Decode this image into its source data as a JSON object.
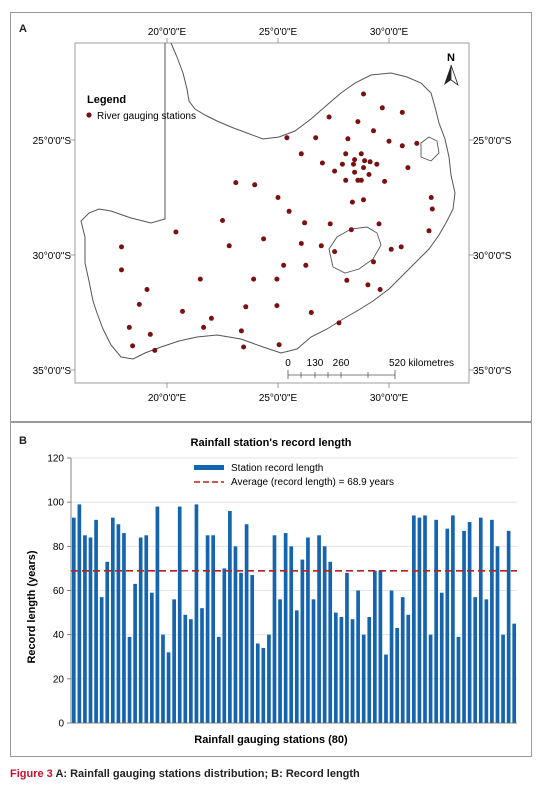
{
  "panel_a": {
    "letter": "A",
    "lon_labels": [
      "20°0'0\"E",
      "25°0'0\"E",
      "30°0'0\"E"
    ],
    "lat_labels": [
      "25°0'0\"S",
      "30°0'0\"S",
      "35°0'0\"S"
    ],
    "legend_title": "Legend",
    "legend_item": "River gauging stations",
    "north": "N",
    "scale_ticks": [
      "0",
      "130",
      "260",
      "520 kilometres"
    ],
    "station_color": "#7a1010",
    "stations": [
      [
        28.85,
        -23.0
      ],
      [
        29.7,
        -23.6
      ],
      [
        30.6,
        -23.8
      ],
      [
        27.3,
        -24.0
      ],
      [
        28.6,
        -24.2
      ],
      [
        29.3,
        -24.6
      ],
      [
        25.4,
        -24.9
      ],
      [
        26.7,
        -24.9
      ],
      [
        28.15,
        -24.95
      ],
      [
        30.0,
        -25.05
      ],
      [
        31.25,
        -25.15
      ],
      [
        30.6,
        -25.25
      ],
      [
        26.05,
        -25.6
      ],
      [
        28.05,
        -25.6
      ],
      [
        28.75,
        -25.6
      ],
      [
        28.45,
        -25.85
      ],
      [
        29.15,
        -25.95
      ],
      [
        28.9,
        -25.9
      ],
      [
        27.0,
        -26.0
      ],
      [
        27.9,
        -26.05
      ],
      [
        28.4,
        -26.05
      ],
      [
        29.45,
        -26.05
      ],
      [
        28.85,
        -26.2
      ],
      [
        27.55,
        -26.35
      ],
      [
        28.45,
        -26.4
      ],
      [
        30.85,
        -26.2
      ],
      [
        29.1,
        -26.5
      ],
      [
        28.75,
        -26.75
      ],
      [
        28.6,
        -26.75
      ],
      [
        28.05,
        -26.75
      ],
      [
        29.8,
        -26.8
      ],
      [
        23.1,
        -26.85
      ],
      [
        23.95,
        -26.95
      ],
      [
        25.0,
        -27.5
      ],
      [
        31.9,
        -27.5
      ],
      [
        31.95,
        -28.0
      ],
      [
        28.35,
        -27.7
      ],
      [
        28.85,
        -27.6
      ],
      [
        25.5,
        -28.1
      ],
      [
        22.5,
        -28.5
      ],
      [
        26.2,
        -28.6
      ],
      [
        27.35,
        -28.65
      ],
      [
        29.55,
        -28.65
      ],
      [
        28.3,
        -28.9
      ],
      [
        20.4,
        -29.0
      ],
      [
        24.35,
        -29.3
      ],
      [
        26.05,
        -29.5
      ],
      [
        26.95,
        -29.6
      ],
      [
        31.8,
        -28.95
      ],
      [
        27.55,
        -29.85
      ],
      [
        30.1,
        -29.75
      ],
      [
        30.55,
        -29.65
      ],
      [
        17.95,
        -29.65
      ],
      [
        22.8,
        -29.6
      ],
      [
        29.3,
        -30.3
      ],
      [
        25.25,
        -30.45
      ],
      [
        26.25,
        -30.45
      ],
      [
        17.95,
        -30.65
      ],
      [
        21.5,
        -31.05
      ],
      [
        23.9,
        -31.05
      ],
      [
        24.95,
        -31.05
      ],
      [
        28.1,
        -31.1
      ],
      [
        29.05,
        -31.3
      ],
      [
        19.1,
        -31.5
      ],
      [
        29.6,
        -31.5
      ],
      [
        18.75,
        -32.15
      ],
      [
        23.55,
        -32.25
      ],
      [
        24.95,
        -32.2
      ],
      [
        20.7,
        -32.45
      ],
      [
        22.0,
        -32.75
      ],
      [
        26.5,
        -32.5
      ],
      [
        18.3,
        -33.15
      ],
      [
        27.75,
        -32.95
      ],
      [
        21.65,
        -33.15
      ],
      [
        23.35,
        -33.3
      ],
      [
        19.25,
        -33.45
      ],
      [
        25.05,
        -33.9
      ],
      [
        18.45,
        -33.95
      ],
      [
        23.45,
        -34.0
      ],
      [
        19.45,
        -34.15
      ]
    ]
  },
  "chart_data": {
    "type": "bar",
    "panel_letter": "B",
    "title": "Rainfall station's record length",
    "xlabel": "Rainfall gauging stations (80)",
    "ylabel": "Record length (years)",
    "ylim": [
      0,
      120
    ],
    "yticks": [
      0,
      20,
      40,
      60,
      80,
      100,
      120
    ],
    "grid": true,
    "legend_position": "top-center",
    "series": [
      {
        "name": "Station record length",
        "color": "#1464ae",
        "values": [
          93,
          99,
          85,
          84,
          92,
          57,
          73,
          93,
          90,
          86,
          39,
          63,
          84,
          85,
          59,
          98,
          40,
          32,
          56,
          98,
          49,
          47,
          99,
          52,
          85,
          85,
          39,
          70,
          96,
          80,
          68,
          90,
          67,
          36,
          34,
          40,
          85,
          56,
          86,
          80,
          51,
          74,
          84,
          56,
          85,
          80,
          73,
          50,
          48,
          68,
          47,
          60,
          40,
          48,
          69,
          69,
          31,
          60,
          43,
          57,
          49,
          94,
          93,
          94,
          40,
          92,
          59,
          88,
          94,
          39,
          87,
          91,
          57,
          93,
          56,
          92,
          80,
          40,
          87,
          45
        ]
      }
    ],
    "average": {
      "name": "Average (record length) = 68.9 years",
      "value": 68.9,
      "color": "#b22222"
    }
  },
  "caption": {
    "figure_label": "Figure 3",
    "text": " A: Rainfall gauging stations distribution; B: Record length"
  }
}
